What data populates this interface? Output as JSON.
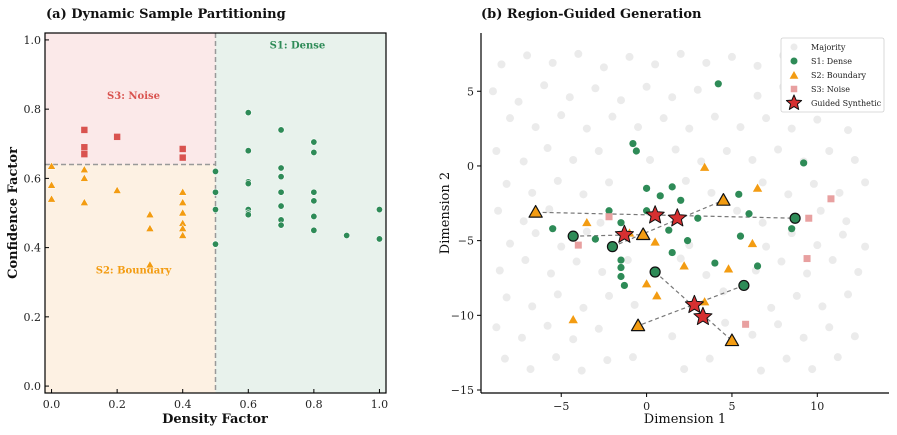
{
  "colors": {
    "dense": "#2e8b57",
    "boundary": "#f39c12",
    "noise": "#d9534f",
    "noise_light": "#e8a0a0",
    "majority": "#ebebeb",
    "synthetic": "#d63031",
    "bg_dense": "#e8f2ec",
    "bg_noise": "#fbe9e9",
    "bg_boundary": "#fdf1e3",
    "divider": "#999999"
  },
  "chart_data": [
    {
      "type": "scatter",
      "title": "(a) Dynamic Sample Partitioning",
      "xlabel": "Density Factor",
      "ylabel": "Confidence Factor",
      "xlim": [
        -0.02,
        1.02
      ],
      "ylim": [
        -0.02,
        1.02
      ],
      "xticks": [
        0.0,
        0.2,
        0.4,
        0.6,
        0.8,
        1.0
      ],
      "yticks": [
        0.0,
        0.2,
        0.4,
        0.6,
        0.8,
        1.0
      ],
      "density_threshold": 0.5,
      "confidence_threshold": 0.64,
      "region_labels": {
        "dense": "S1: Dense",
        "noise": "S3: Noise",
        "boundary": "S2: Boundary"
      },
      "region_label_positions": {
        "dense": [
          0.75,
          0.975
        ],
        "noise": [
          0.25,
          0.83
        ],
        "boundary": [
          0.25,
          0.325
        ]
      },
      "series": [
        {
          "name": "S1: Dense",
          "marker": "circle",
          "points": [
            [
              0.5,
              0.62
            ],
            [
              0.5,
              0.56
            ],
            [
              0.5,
              0.51
            ],
            [
              0.5,
              0.41
            ],
            [
              0.6,
              0.79
            ],
            [
              0.6,
              0.68
            ],
            [
              0.6,
              0.59
            ],
            [
              0.6,
              0.585
            ],
            [
              0.6,
              0.51
            ],
            [
              0.6,
              0.5
            ],
            [
              0.6,
              0.495
            ],
            [
              0.7,
              0.74
            ],
            [
              0.7,
              0.63
            ],
            [
              0.7,
              0.605
            ],
            [
              0.7,
              0.56
            ],
            [
              0.7,
              0.52
            ],
            [
              0.7,
              0.48
            ],
            [
              0.7,
              0.465
            ],
            [
              0.8,
              0.705
            ],
            [
              0.8,
              0.675
            ],
            [
              0.8,
              0.56
            ],
            [
              0.8,
              0.535
            ],
            [
              0.8,
              0.49
            ],
            [
              0.8,
              0.45
            ],
            [
              0.9,
              0.435
            ],
            [
              1.0,
              0.51
            ],
            [
              1.0,
              0.425
            ]
          ]
        },
        {
          "name": "S2: Boundary",
          "marker": "triangle",
          "points": [
            [
              0.0,
              0.635
            ],
            [
              0.0,
              0.58
            ],
            [
              0.0,
              0.54
            ],
            [
              0.1,
              0.625
            ],
            [
              0.1,
              0.6
            ],
            [
              0.1,
              0.53
            ],
            [
              0.2,
              0.565
            ],
            [
              0.3,
              0.495
            ],
            [
              0.3,
              0.455
            ],
            [
              0.3,
              0.35
            ],
            [
              0.4,
              0.56
            ],
            [
              0.4,
              0.53
            ],
            [
              0.4,
              0.5
            ],
            [
              0.4,
              0.47
            ],
            [
              0.4,
              0.455
            ],
            [
              0.4,
              0.435
            ]
          ]
        },
        {
          "name": "S3: Noise",
          "marker": "square",
          "points": [
            [
              0.1,
              0.74
            ],
            [
              0.1,
              0.69
            ],
            [
              0.1,
              0.67
            ],
            [
              0.2,
              0.72
            ],
            [
              0.4,
              0.685
            ],
            [
              0.4,
              0.66
            ]
          ]
        }
      ]
    },
    {
      "type": "scatter",
      "title": "(b) Region-Guided Generation",
      "xlabel": "Dimension 1",
      "ylabel": "Dimension 2",
      "xlim": [
        -9.7,
        14.2
      ],
      "ylim": [
        -15.2,
        8.9
      ],
      "xticks": [
        -5,
        0,
        5,
        10
      ],
      "yticks": [
        5,
        0,
        -5,
        -10,
        -15
      ],
      "legend": {
        "position": "top-right",
        "entries": [
          "Majority",
          "S1: Dense",
          "S2: Boundary",
          "S3: Noise",
          "Guided Synthetic"
        ]
      },
      "majority": [
        [
          -8.5,
          6.8
        ],
        [
          -7.0,
          7.4
        ],
        [
          -5.5,
          6.9
        ],
        [
          -4.0,
          7.5
        ],
        [
          -2.5,
          6.6
        ],
        [
          -1.0,
          7.3
        ],
        [
          0.5,
          6.8
        ],
        [
          2.0,
          7.5
        ],
        [
          3.5,
          6.9
        ],
        [
          5.0,
          7.3
        ],
        [
          6.5,
          6.7
        ],
        [
          8.0,
          7.4
        ],
        [
          9.5,
          6.6
        ],
        [
          11.5,
          6.9
        ],
        [
          -9.0,
          5.0
        ],
        [
          -7.5,
          4.3
        ],
        [
          -6.0,
          5.4
        ],
        [
          -4.5,
          4.6
        ],
        [
          -3.0,
          5.2
        ],
        [
          -1.5,
          4.4
        ],
        [
          0.0,
          5.3
        ],
        [
          1.5,
          4.6
        ],
        [
          3.0,
          5.1
        ],
        [
          6.5,
          4.7
        ],
        [
          8.0,
          5.3
        ],
        [
          9.5,
          4.6
        ],
        [
          11.0,
          5.0
        ],
        [
          12.5,
          4.3
        ],
        [
          -8.0,
          3.2
        ],
        [
          -6.5,
          2.6
        ],
        [
          -5.0,
          3.4
        ],
        [
          -3.5,
          2.5
        ],
        [
          -2.0,
          3.3
        ],
        [
          -0.5,
          2.6
        ],
        [
          1.0,
          3.2
        ],
        [
          2.5,
          2.5
        ],
        [
          4.0,
          3.3
        ],
        [
          5.5,
          2.6
        ],
        [
          7.0,
          3.2
        ],
        [
          8.5,
          2.5
        ],
        [
          10.0,
          3.1
        ],
        [
          11.8,
          2.4
        ],
        [
          -8.8,
          1.0
        ],
        [
          -7.2,
          0.3
        ],
        [
          -5.8,
          1.2
        ],
        [
          -4.3,
          0.4
        ],
        [
          -2.8,
          1.0
        ],
        [
          0.2,
          0.4
        ],
        [
          1.7,
          1.1
        ],
        [
          3.2,
          0.3
        ],
        [
          4.7,
          1.0
        ],
        [
          6.2,
          0.4
        ],
        [
          7.7,
          1.1
        ],
        [
          9.2,
          0.3
        ],
        [
          10.7,
          1.0
        ],
        [
          12.2,
          0.4
        ],
        [
          -8.2,
          -1.2
        ],
        [
          -6.7,
          -1.8
        ],
        [
          -5.2,
          -1.0
        ],
        [
          -3.7,
          -1.9
        ],
        [
          -2.2,
          -1.1
        ],
        [
          2.3,
          -1.0
        ],
        [
          3.8,
          -1.8
        ],
        [
          6.8,
          -1.1
        ],
        [
          8.3,
          -1.9
        ],
        [
          9.8,
          -1.2
        ],
        [
          11.3,
          -1.8
        ],
        [
          12.8,
          -1.1
        ],
        [
          -8.7,
          -3.0
        ],
        [
          -7.2,
          -3.7
        ],
        [
          -5.7,
          -2.9
        ],
        [
          -2.7,
          -3.8
        ],
        [
          5.3,
          -3.0
        ],
        [
          6.8,
          -3.8
        ],
        [
          10.2,
          -3.0
        ],
        [
          11.7,
          -3.7
        ],
        [
          -8.0,
          -5.2
        ],
        [
          -6.5,
          -4.5
        ],
        [
          -5.0,
          -5.4
        ],
        [
          -3.5,
          -4.4
        ],
        [
          2.5,
          -5.3
        ],
        [
          7.0,
          -5.4
        ],
        [
          8.5,
          -4.5
        ],
        [
          10.0,
          -5.3
        ],
        [
          11.5,
          -4.6
        ],
        [
          12.8,
          -5.4
        ],
        [
          -8.6,
          -7.0
        ],
        [
          -7.1,
          -6.3
        ],
        [
          -5.6,
          -7.2
        ],
        [
          -4.1,
          -6.4
        ],
        [
          -2.6,
          -7.1
        ],
        [
          -1.1,
          -6.3
        ],
        [
          2.0,
          -6.2
        ],
        [
          3.5,
          -7.3
        ],
        [
          6.4,
          -7.0
        ],
        [
          7.9,
          -6.4
        ],
        [
          9.4,
          -7.2
        ],
        [
          10.9,
          -6.3
        ],
        [
          12.4,
          -7.1
        ],
        [
          -8.2,
          -8.8
        ],
        [
          -6.7,
          -9.4
        ],
        [
          -5.2,
          -8.6
        ],
        [
          -3.7,
          -9.5
        ],
        [
          -2.2,
          -8.7
        ],
        [
          -0.7,
          -9.3
        ],
        [
          4.5,
          -8.4
        ],
        [
          7.3,
          -9.5
        ],
        [
          8.8,
          -8.7
        ],
        [
          10.3,
          -9.4
        ],
        [
          11.8,
          -8.6
        ],
        [
          -8.8,
          -10.8
        ],
        [
          -7.3,
          -11.5
        ],
        [
          -5.8,
          -10.7
        ],
        [
          -4.3,
          -11.6
        ],
        [
          -2.8,
          -10.9
        ],
        [
          1.5,
          -11.4
        ],
        [
          4.6,
          -10.5
        ],
        [
          6.2,
          -11.3
        ],
        [
          7.7,
          -10.6
        ],
        [
          9.2,
          -11.5
        ],
        [
          10.7,
          -10.8
        ],
        [
          12.2,
          -11.4
        ],
        [
          -8.3,
          -12.9
        ],
        [
          -6.8,
          -13.6
        ],
        [
          -5.3,
          -12.8
        ],
        [
          -3.8,
          -13.7
        ],
        [
          -2.3,
          -13.0
        ],
        [
          -0.8,
          -12.8
        ],
        [
          2.2,
          -13.6
        ],
        [
          3.7,
          -12.9
        ],
        [
          6.7,
          -13.7
        ],
        [
          8.2,
          -12.9
        ],
        [
          9.7,
          -13.6
        ],
        [
          11.2,
          -12.8
        ]
      ],
      "dense": [
        [
          4.2,
          5.5
        ],
        [
          -0.8,
          1.5
        ],
        [
          -0.6,
          1.0
        ],
        [
          0.0,
          -1.5
        ],
        [
          0.8,
          -2.0
        ],
        [
          1.5,
          -1.4
        ],
        [
          2.0,
          -2.3
        ],
        [
          -2.2,
          -3.0
        ],
        [
          0.0,
          -3.0
        ],
        [
          -1.5,
          -3.8
        ],
        [
          3.0,
          -3.5
        ],
        [
          6.0,
          -3.2
        ],
        [
          -5.5,
          -4.2
        ],
        [
          -3.0,
          -4.9
        ],
        [
          1.3,
          -4.3
        ],
        [
          2.4,
          -5.0
        ],
        [
          5.5,
          -4.7
        ],
        [
          1.5,
          -5.8
        ],
        [
          -1.5,
          -6.3
        ],
        [
          -1.5,
          -6.8
        ],
        [
          -1.5,
          -7.4
        ],
        [
          4.0,
          -6.5
        ],
        [
          6.5,
          -6.7
        ],
        [
          -1.3,
          -8.0
        ],
        [
          9.2,
          0.2
        ],
        [
          8.5,
          -4.2
        ],
        [
          5.4,
          -1.9
        ]
      ],
      "boundary": [
        [
          3.4,
          -0.1
        ],
        [
          6.5,
          -1.5
        ],
        [
          -3.5,
          -3.8
        ],
        [
          -1.0,
          -4.5
        ],
        [
          0.5,
          -5.1
        ],
        [
          2.2,
          -6.7
        ],
        [
          0.0,
          -7.9
        ],
        [
          0.6,
          -8.7
        ],
        [
          3.4,
          -9.1
        ],
        [
          4.8,
          -6.9
        ],
        [
          6.2,
          -5.2
        ],
        [
          -4.3,
          -10.3
        ]
      ],
      "noise": [
        [
          -2.2,
          -3.4
        ],
        [
          -4.0,
          -5.3
        ],
        [
          9.5,
          -3.5
        ],
        [
          10.8,
          -2.2
        ],
        [
          9.4,
          -6.2
        ],
        [
          5.8,
          -10.6
        ]
      ],
      "anchors_dense": [
        [
          -4.3,
          -4.7
        ],
        [
          -2.0,
          -5.4
        ],
        [
          0.5,
          -7.1
        ],
        [
          5.7,
          -8.0
        ],
        [
          8.7,
          -3.5
        ]
      ],
      "anchors_boundary": [
        [
          -6.5,
          -3.1
        ],
        [
          -0.2,
          -4.6
        ],
        [
          4.5,
          -2.3
        ],
        [
          -0.5,
          -10.7
        ],
        [
          5.0,
          -11.7
        ]
      ],
      "synthetic": [
        [
          -1.3,
          -4.6
        ],
        [
          0.5,
          -3.3
        ],
        [
          1.8,
          -3.5
        ],
        [
          2.8,
          -9.3
        ],
        [
          3.3,
          -10.1
        ]
      ],
      "links": [
        [
          [
            -6.5,
            -3.1
          ],
          [
            8.7,
            -3.5
          ]
        ],
        [
          [
            -4.3,
            -4.7
          ],
          [
            -0.2,
            -4.6
          ]
        ],
        [
          [
            -2.0,
            -5.4
          ],
          [
            4.5,
            -2.3
          ]
        ],
        [
          [
            0.5,
            -7.1
          ],
          [
            5.0,
            -11.7
          ]
        ],
        [
          [
            5.7,
            -8.0
          ],
          [
            -0.5,
            -10.7
          ]
        ]
      ]
    }
  ]
}
